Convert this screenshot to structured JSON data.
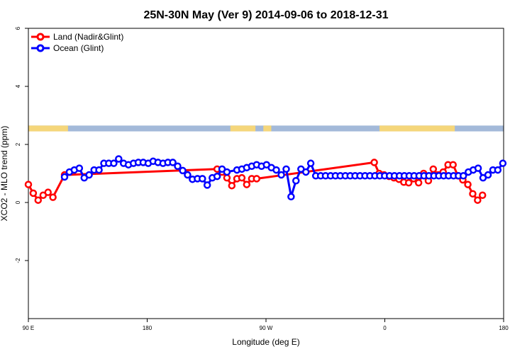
{
  "chart_data": {
    "type": "line",
    "title": "25N-30N May (Ver 9)   2014-09-06 to 2018-12-31",
    "xlabel": "Longitude (deg E)",
    "ylabel": "XCO2 - MLO trend (ppm)",
    "xlim": [
      90,
      450
    ],
    "ylim": [
      -4,
      6
    ],
    "x_ticks": [
      {
        "value": 90,
        "label": "90 E"
      },
      {
        "value": 180,
        "label": "180"
      },
      {
        "value": 270,
        "label": "90 W"
      },
      {
        "value": 360,
        "label": "0"
      },
      {
        "value": 450,
        "label": "180"
      }
    ],
    "y_ticks": [
      {
        "value": -2,
        "label": "-2"
      },
      {
        "value": 0,
        "label": "0"
      },
      {
        "value": 2,
        "label": "2"
      },
      {
        "value": 4,
        "label": "4"
      },
      {
        "value": 6,
        "label": "6"
      }
    ],
    "legend_position": "top-left",
    "land_ocean_strip": {
      "y_range": [
        2.45,
        2.65
      ],
      "land_color": "#f5d67a",
      "ocean_color": "#a3b9d9",
      "land_segments": [
        [
          90,
          120
        ],
        [
          243,
          262
        ],
        [
          268,
          274
        ],
        [
          356,
          413
        ]
      ]
    },
    "series": [
      {
        "name": "Land (Nadir&Glint)",
        "color": "#ff0000",
        "x": [
          90,
          93.7,
          97.4,
          101.2,
          104.9,
          108.6,
          117.4,
          233,
          236.7,
          240.4,
          244.1,
          248,
          251.7,
          255.4,
          259.2,
          262.9,
          352,
          355.7,
          359.5,
          363.2,
          366.9,
          370.7,
          374.4,
          378.1,
          381.8,
          385.6,
          389.4,
          393,
          396.7,
          400.5,
          404.2,
          407.9,
          411.7,
          415.4,
          419.1,
          422.9,
          426.6,
          430.3,
          434
        ],
        "y": [
          0.62,
          0.32,
          0.08,
          0.25,
          0.35,
          0.18,
          0.95,
          1.15,
          1.05,
          0.85,
          0.58,
          0.82,
          0.85,
          0.62,
          0.82,
          0.82,
          1.38,
          1.0,
          0.95,
          0.9,
          0.85,
          0.8,
          0.7,
          0.68,
          0.82,
          0.68,
          1.0,
          0.75,
          1.15,
          0.95,
          1.05,
          1.3,
          1.3,
          0.92,
          0.78,
          0.62,
          0.3,
          0.08,
          0.25
        ]
      },
      {
        "name": "Ocean (Glint)",
        "color": "#0000ff",
        "x": [
          117.4,
          121.1,
          124.8,
          128.6,
          132.3,
          136,
          139.8,
          143.5,
          147.2,
          150.9,
          154.7,
          158.4,
          162.1,
          165.8,
          169.6,
          173.3,
          177,
          180.8,
          184.5,
          188.2,
          192,
          195.7,
          199.4,
          203.1,
          206.9,
          210.6,
          214.3,
          218.1,
          221.8,
          225.5,
          229.3,
          233,
          236.7,
          240.4,
          248,
          251.7,
          255.4,
          259.2,
          262.9,
          266.6,
          270.4,
          274.1,
          277.8,
          281.6,
          285.3,
          289,
          292.7,
          296.5,
          300.2,
          303.9,
          307.7,
          311.4,
          315.1,
          318.9,
          322.6,
          326.3,
          330.1,
          333.8,
          337.5,
          341.2,
          345,
          348.7,
          352.5,
          356.2,
          359.9,
          363.6,
          367.3,
          371.1,
          374.8,
          378.5,
          382.2,
          386,
          389.7,
          393.4,
          397.2,
          400.9,
          404.6,
          408.3,
          412.1,
          415.8,
          419.5,
          423.3,
          427,
          430.7,
          434.4,
          438.2,
          441.9,
          445.6,
          449.4
        ],
        "y": [
          0.88,
          1.05,
          1.12,
          1.18,
          0.85,
          0.95,
          1.12,
          1.12,
          1.35,
          1.35,
          1.35,
          1.5,
          1.35,
          1.3,
          1.35,
          1.38,
          1.38,
          1.35,
          1.42,
          1.38,
          1.35,
          1.38,
          1.38,
          1.25,
          1.1,
          0.95,
          0.8,
          0.82,
          0.82,
          0.6,
          0.85,
          0.9,
          1.15,
          1.05,
          1.12,
          1.15,
          1.2,
          1.25,
          1.3,
          1.25,
          1.3,
          1.2,
          1.12,
          0.95,
          1.15,
          0.2,
          0.75,
          1.15,
          1.05,
          1.35,
          0.92,
          0.92,
          0.92,
          0.92,
          0.92,
          0.92,
          0.92,
          0.92,
          0.92,
          0.92,
          0.92,
          0.92,
          0.92,
          0.92,
          0.92,
          0.92,
          0.92,
          0.92,
          0.92,
          0.92,
          0.92,
          0.92,
          0.92,
          0.92,
          0.92,
          0.92,
          0.92,
          0.92,
          0.92,
          0.92,
          0.92,
          1.05,
          1.12,
          1.18,
          0.85,
          0.95,
          1.12,
          1.12,
          1.35
        ]
      }
    ]
  }
}
